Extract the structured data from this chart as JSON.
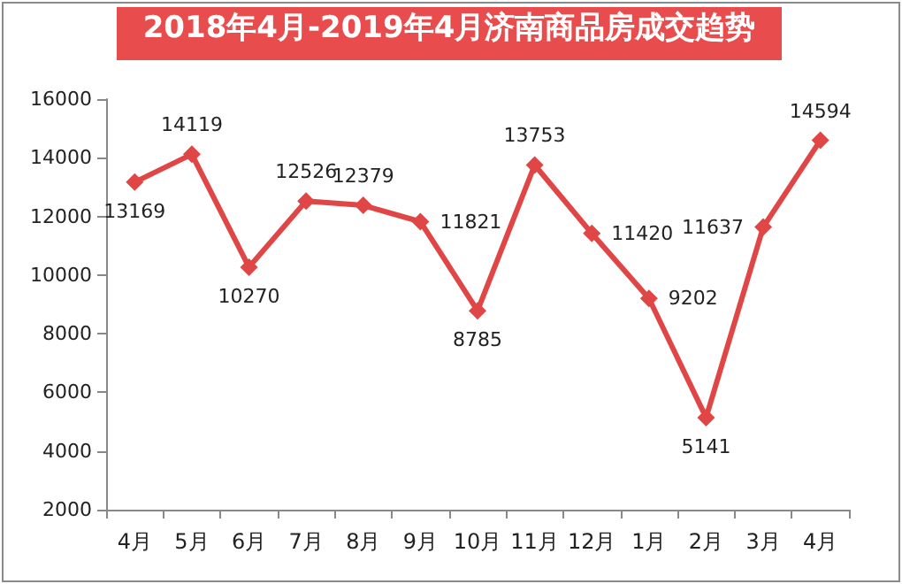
{
  "chart_data": {
    "type": "line",
    "title": "2018年4月-2019年4月济南商品房成交趋势",
    "categories": [
      "4月",
      "5月",
      "6月",
      "7月",
      "8月",
      "9月",
      "10月",
      "11月",
      "12月",
      "1月",
      "2月",
      "3月",
      "4月"
    ],
    "series": [
      {
        "color": "#e04646",
        "values": [
          13169,
          14119,
          10270,
          12526,
          12379,
          11821,
          8785,
          13753,
          11420,
          9202,
          5141,
          11637,
          14594
        ]
      }
    ],
    "ylim": [
      2000,
      16000
    ],
    "yticks": [
      2000,
      4000,
      6000,
      8000,
      10000,
      12000,
      14000,
      16000
    ],
    "marker": "diamond",
    "line_style": "solid",
    "data_labels": true
  }
}
